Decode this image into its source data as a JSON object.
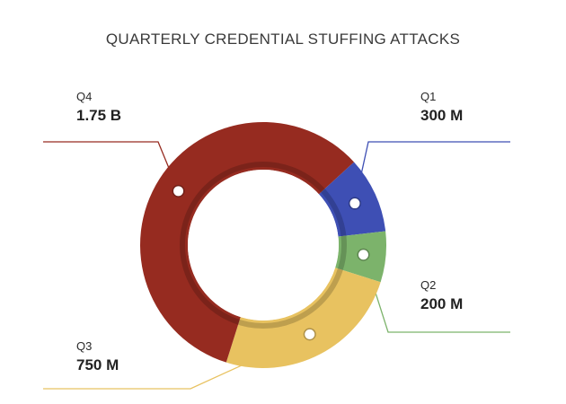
{
  "chart_data": {
    "type": "pie",
    "title": "QUARTERLY CREDENTIAL STUFFING ATTACKS",
    "categories": [
      "Q1",
      "Q2",
      "Q3",
      "Q4"
    ],
    "values": [
      300000000,
      200000000,
      750000000,
      1750000000
    ],
    "value_labels": [
      "300 M",
      "200 M",
      "750 M",
      "1.75 B"
    ],
    "colors": [
      "#3e4fb4",
      "#7cb36b",
      "#e8c260",
      "#962b20"
    ],
    "style": "donut"
  }
}
